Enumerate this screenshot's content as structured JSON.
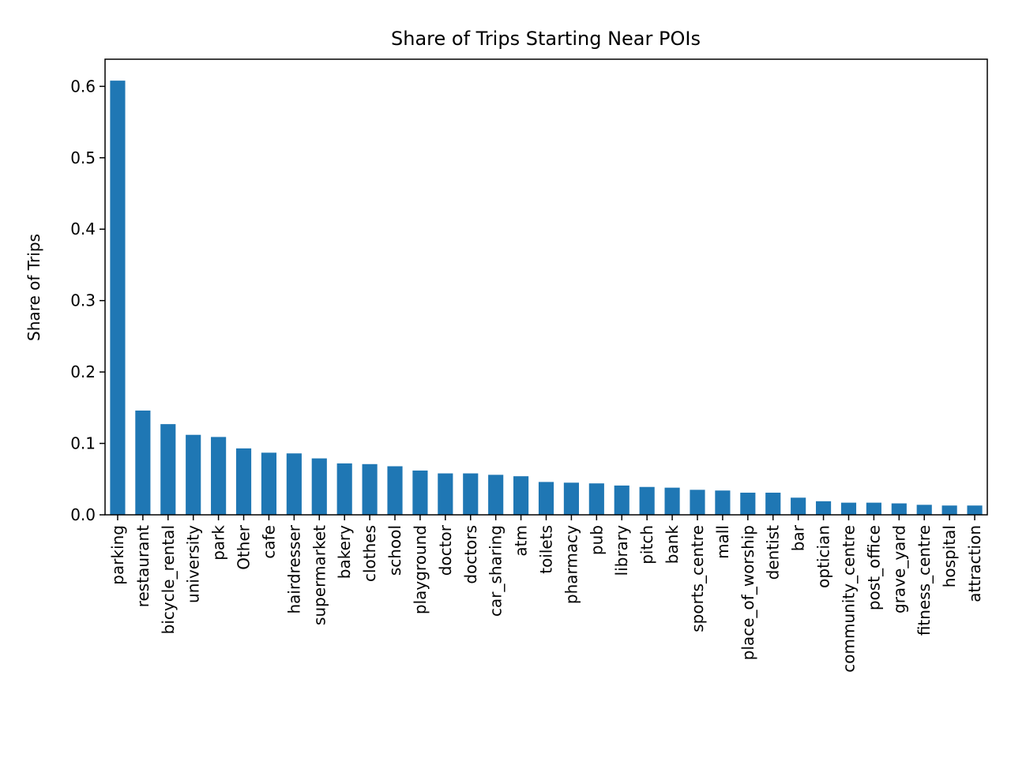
{
  "chart_data": {
    "type": "bar",
    "title": "Share of Trips Starting Near POIs",
    "xlabel": "",
    "ylabel": "Share of Trips",
    "ylim": [
      0,
      0.638
    ],
    "yticks": [
      "0.0",
      "0.1",
      "0.2",
      "0.3",
      "0.4",
      "0.5",
      "0.6"
    ],
    "grid": false,
    "bar_color": "#1f77b4",
    "categories": [
      "parking",
      "restaurant",
      "bicycle_rental",
      "university",
      "park",
      "Other",
      "cafe",
      "hairdresser",
      "supermarket",
      "bakery",
      "clothes",
      "school",
      "playground",
      "doctor",
      "doctors",
      "car_sharing",
      "atm",
      "toilets",
      "pharmacy",
      "pub",
      "library",
      "pitch",
      "bank",
      "sports_centre",
      "mall",
      "place_of_worship",
      "dentist",
      "bar",
      "optician",
      "community_centre",
      "post_office",
      "grave_yard",
      "fitness_centre",
      "hospital",
      "attraction"
    ],
    "values": [
      0.608,
      0.146,
      0.127,
      0.112,
      0.109,
      0.093,
      0.087,
      0.086,
      0.079,
      0.072,
      0.071,
      0.068,
      0.062,
      0.058,
      0.058,
      0.056,
      0.054,
      0.046,
      0.045,
      0.044,
      0.041,
      0.039,
      0.038,
      0.035,
      0.034,
      0.031,
      0.031,
      0.024,
      0.019,
      0.017,
      0.017,
      0.016,
      0.014,
      0.013,
      0.013
    ]
  }
}
